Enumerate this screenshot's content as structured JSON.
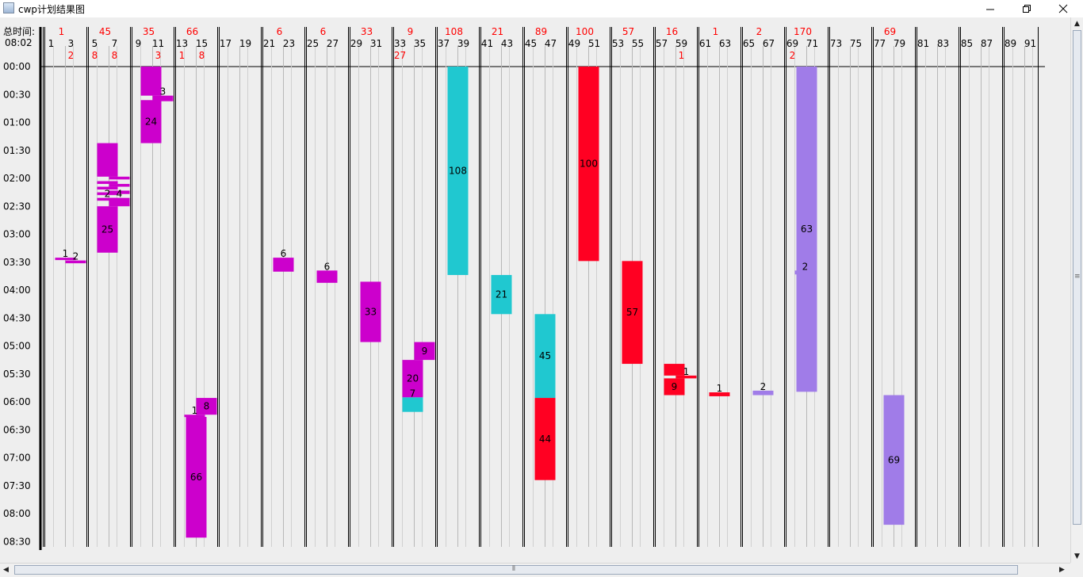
{
  "window": {
    "title": "cwp计划结果图",
    "minimize_icon": "minimize-icon",
    "restore_icon": "restore-icon",
    "close_icon": "close-icon"
  },
  "header": {
    "total_time_label": "总时间:",
    "total_time_value": "08:02"
  },
  "colors": {
    "magenta": "#cc00cc",
    "cyan": "#20c8d0",
    "red": "#ff0022",
    "purple": "#a07ce8",
    "total_text": "#ff0000"
  },
  "time_labels": [
    "00:00",
    "00:30",
    "01:00",
    "01:30",
    "02:00",
    "02:30",
    "03:00",
    "03:30",
    "04:00",
    "04:30",
    "05:00",
    "05:30",
    "06:00",
    "06:30",
    "07:00",
    "07:30",
    "08:00",
    "08:30"
  ],
  "bays": [
    {
      "total": "1",
      "left": "1",
      "right": "3",
      "left_sub": "",
      "right_sub": "2"
    },
    {
      "total": "45",
      "left": "5",
      "right": "7",
      "left_sub": "8",
      "right_sub": "8"
    },
    {
      "total": "35",
      "left": "9",
      "right": "11",
      "left_sub": "",
      "right_sub": "3"
    },
    {
      "total": "66",
      "left": "13",
      "right": "15",
      "left_sub": "1",
      "right_sub": "8"
    },
    {
      "total": "",
      "left": "17",
      "right": "19",
      "left_sub": "",
      "right_sub": ""
    },
    {
      "total": "6",
      "left": "21",
      "right": "23",
      "left_sub": "",
      "right_sub": ""
    },
    {
      "total": "6",
      "left": "25",
      "right": "27",
      "left_sub": "",
      "right_sub": ""
    },
    {
      "total": "33",
      "left": "29",
      "right": "31",
      "left_sub": "",
      "right_sub": ""
    },
    {
      "total": "9",
      "left": "33",
      "right": "35",
      "left_sub": "27",
      "right_sub": ""
    },
    {
      "total": "108",
      "left": "37",
      "right": "39",
      "left_sub": "",
      "right_sub": ""
    },
    {
      "total": "21",
      "left": "41",
      "right": "43",
      "left_sub": "",
      "right_sub": ""
    },
    {
      "total": "89",
      "left": "45",
      "right": "47",
      "left_sub": "",
      "right_sub": ""
    },
    {
      "total": "100",
      "left": "49",
      "right": "51",
      "left_sub": "",
      "right_sub": ""
    },
    {
      "total": "57",
      "left": "53",
      "right": "55",
      "left_sub": "",
      "right_sub": ""
    },
    {
      "total": "16",
      "left": "57",
      "right": "59",
      "left_sub": "",
      "right_sub": "1"
    },
    {
      "total": "1",
      "left": "61",
      "right": "63",
      "left_sub": "",
      "right_sub": ""
    },
    {
      "total": "2",
      "left": "65",
      "right": "67",
      "left_sub": "",
      "right_sub": ""
    },
    {
      "total": "170",
      "left": "69",
      "right": "71",
      "left_sub": "2",
      "right_sub": ""
    },
    {
      "total": "",
      "left": "73",
      "right": "75",
      "left_sub": "",
      "right_sub": ""
    },
    {
      "total": "69",
      "left": "77",
      "right": "79",
      "left_sub": "",
      "right_sub": ""
    },
    {
      "total": "",
      "left": "81",
      "right": "83",
      "left_sub": "",
      "right_sub": ""
    },
    {
      "total": "",
      "left": "85",
      "right": "87",
      "left_sub": "",
      "right_sub": ""
    },
    {
      "total": "",
      "left": "89",
      "right": "91",
      "left_sub": "",
      "right_sub": ""
    }
  ],
  "tasks": [
    {
      "bay": 0,
      "lane": "c",
      "start": 3.42,
      "end": 3.45,
      "color": "magenta",
      "label": "1"
    },
    {
      "bay": 0,
      "lane": "r",
      "start": 3.47,
      "end": 3.52,
      "color": "magenta",
      "label": "2"
    },
    {
      "bay": 1,
      "lane": "l",
      "start": 1.37,
      "end": 1.97,
      "color": "magenta",
      "label": ""
    },
    {
      "bay": 1,
      "lane": "l",
      "start": 2.05,
      "end": 2.1,
      "color": "magenta",
      "label": ""
    },
    {
      "bay": 1,
      "lane": "l",
      "start": 2.15,
      "end": 2.2,
      "color": "magenta",
      "label": ""
    },
    {
      "bay": 1,
      "lane": "l",
      "start": 2.25,
      "end": 2.3,
      "color": "magenta",
      "label": ""
    },
    {
      "bay": 1,
      "lane": "l",
      "start": 2.35,
      "end": 2.4,
      "color": "magenta",
      "label": "2"
    },
    {
      "bay": 1,
      "lane": "l",
      "start": 2.5,
      "end": 3.33,
      "color": "magenta",
      "label": "25"
    },
    {
      "bay": 1,
      "lane": "r",
      "start": 1.97,
      "end": 2.02,
      "color": "magenta",
      "label": ""
    },
    {
      "bay": 1,
      "lane": "r",
      "start": 2.1,
      "end": 2.15,
      "color": "magenta",
      "label": ""
    },
    {
      "bay": 1,
      "lane": "r",
      "start": 2.22,
      "end": 2.28,
      "color": "magenta",
      "label": ""
    },
    {
      "bay": 1,
      "lane": "r",
      "start": 2.35,
      "end": 2.5,
      "color": "magenta",
      "label": "4"
    },
    {
      "bay": 2,
      "lane": "l",
      "start": 0,
      "end": 0.52,
      "color": "magenta",
      "label": ""
    },
    {
      "bay": 2,
      "lane": "r",
      "start": 0.52,
      "end": 0.62,
      "color": "magenta",
      "label": "3"
    },
    {
      "bay": 2,
      "lane": "l",
      "start": 0.6,
      "end": 1.37,
      "color": "magenta",
      "label": "24"
    },
    {
      "bay": 3,
      "lane": "l",
      "start": 6.23,
      "end": 6.27,
      "color": "magenta",
      "label": "1"
    },
    {
      "bay": 3,
      "lane": "r",
      "start": 5.93,
      "end": 6.23,
      "color": "magenta",
      "label": "8"
    },
    {
      "bay": 3,
      "lane": "c",
      "start": 6.27,
      "end": 8.43,
      "color": "magenta",
      "label": "66"
    },
    {
      "bay": 5,
      "lane": "c",
      "start": 3.42,
      "end": 3.67,
      "color": "magenta",
      "label": "6"
    },
    {
      "bay": 6,
      "lane": "c",
      "start": 3.65,
      "end": 3.87,
      "color": "magenta",
      "label": "6"
    },
    {
      "bay": 7,
      "lane": "c",
      "start": 3.85,
      "end": 4.93,
      "color": "magenta",
      "label": "33"
    },
    {
      "bay": 8,
      "lane": "r",
      "start": 4.93,
      "end": 5.25,
      "color": "magenta",
      "label": "9"
    },
    {
      "bay": 8,
      "lane": "l",
      "start": 5.25,
      "end": 5.92,
      "color": "magenta",
      "label": "20"
    },
    {
      "bay": 8,
      "lane": "l",
      "start": 5.92,
      "end": 6.18,
      "color": "cyan",
      "label": "7"
    },
    {
      "bay": 9,
      "lane": "c",
      "start": 0,
      "end": 3.73,
      "color": "cyan",
      "label": "108"
    },
    {
      "bay": 10,
      "lane": "c",
      "start": 3.73,
      "end": 4.43,
      "color": "cyan",
      "label": "21"
    },
    {
      "bay": 11,
      "lane": "c",
      "start": 4.43,
      "end": 5.93,
      "color": "cyan",
      "label": "45"
    },
    {
      "bay": 11,
      "lane": "c",
      "start": 5.93,
      "end": 7.4,
      "color": "red",
      "label": "44"
    },
    {
      "bay": 12,
      "lane": "c",
      "start": 0,
      "end": 3.48,
      "color": "red",
      "label": "100"
    },
    {
      "bay": 13,
      "lane": "c",
      "start": 3.48,
      "end": 5.32,
      "color": "red",
      "label": "57"
    },
    {
      "bay": 14,
      "lane": "l",
      "start": 5.32,
      "end": 5.53,
      "color": "red",
      "label": ""
    },
    {
      "bay": 14,
      "lane": "r",
      "start": 5.53,
      "end": 5.58,
      "color": "red",
      "label": "1"
    },
    {
      "bay": 14,
      "lane": "l",
      "start": 5.58,
      "end": 5.88,
      "color": "red",
      "label": "9"
    },
    {
      "bay": 15,
      "lane": "c",
      "start": 5.83,
      "end": 5.9,
      "color": "red",
      "label": "1"
    },
    {
      "bay": 16,
      "lane": "c",
      "start": 5.8,
      "end": 5.88,
      "color": "purple",
      "label": "2"
    },
    {
      "bay": 17,
      "lane": "l",
      "start": 3.65,
      "end": 3.72,
      "color": "purple",
      "label": "2"
    },
    {
      "bay": 17,
      "lane": "c",
      "start": 0,
      "end": 5.82,
      "color": "purple",
      "label": "63"
    },
    {
      "bay": 19,
      "lane": "c",
      "start": 5.88,
      "end": 8.2,
      "color": "purple",
      "label": "69"
    }
  ]
}
